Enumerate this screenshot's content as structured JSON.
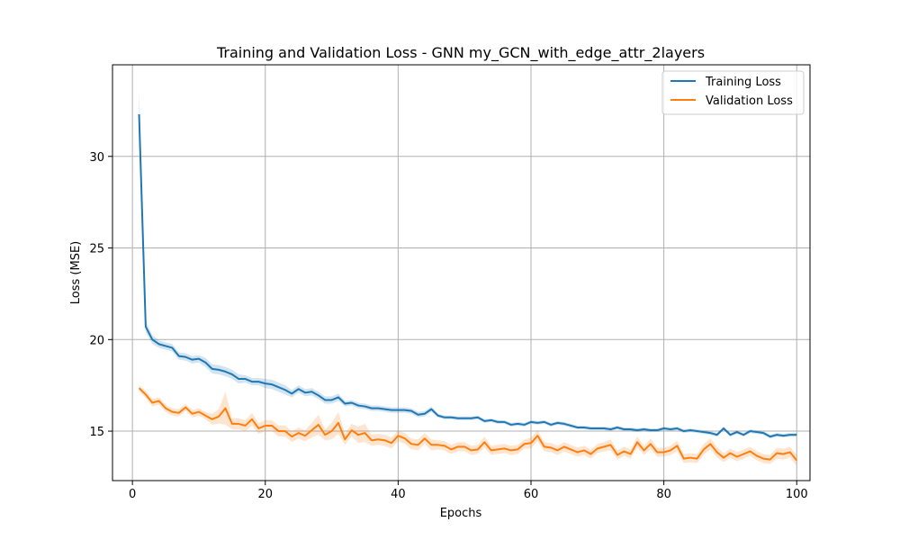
{
  "chart_data": {
    "type": "line",
    "title": "Training and Validation Loss - GNN my_GCN_with_edge_attr_2layers",
    "xlabel": "Epochs",
    "ylabel": "Loss (MSE)",
    "xlim": [
      -3,
      102
    ],
    "ylim": [
      12.3,
      35.0
    ],
    "xticks": [
      0,
      20,
      40,
      60,
      80,
      100
    ],
    "yticks": [
      15,
      20,
      25,
      30
    ],
    "grid": true,
    "legend_position": "top-right",
    "x": [
      1,
      2,
      3,
      4,
      5,
      6,
      7,
      8,
      9,
      10,
      11,
      12,
      13,
      14,
      15,
      16,
      17,
      18,
      19,
      20,
      21,
      22,
      23,
      24,
      25,
      26,
      27,
      28,
      29,
      30,
      31,
      32,
      33,
      34,
      35,
      36,
      37,
      38,
      39,
      40,
      41,
      42,
      43,
      44,
      45,
      46,
      47,
      48,
      49,
      50,
      51,
      52,
      53,
      54,
      55,
      56,
      57,
      58,
      59,
      60,
      61,
      62,
      63,
      64,
      65,
      66,
      67,
      68,
      69,
      70,
      71,
      72,
      73,
      74,
      75,
      76,
      77,
      78,
      79,
      80,
      81,
      82,
      83,
      84,
      85,
      86,
      87,
      88,
      89,
      90,
      91,
      92,
      93,
      94,
      95,
      96,
      97,
      98,
      99,
      100
    ],
    "series": [
      {
        "name": "Training Loss",
        "color": "#1f77b4",
        "values": [
          32.3,
          20.7,
          20.0,
          19.75,
          19.65,
          19.55,
          19.1,
          19.05,
          18.9,
          18.95,
          18.75,
          18.4,
          18.35,
          18.25,
          18.1,
          17.85,
          17.85,
          17.7,
          17.7,
          17.6,
          17.55,
          17.4,
          17.25,
          17.05,
          17.3,
          17.1,
          17.15,
          16.95,
          16.7,
          16.7,
          16.85,
          16.5,
          16.55,
          16.4,
          16.35,
          16.25,
          16.25,
          16.2,
          16.15,
          16.15,
          16.15,
          16.1,
          15.9,
          15.95,
          16.2,
          15.85,
          15.75,
          15.75,
          15.7,
          15.7,
          15.7,
          15.75,
          15.55,
          15.6,
          15.5,
          15.5,
          15.35,
          15.4,
          15.35,
          15.5,
          15.45,
          15.5,
          15.35,
          15.45,
          15.4,
          15.3,
          15.2,
          15.2,
          15.15,
          15.15,
          15.15,
          15.1,
          15.2,
          15.1,
          15.1,
          15.05,
          15.1,
          15.05,
          15.05,
          15.15,
          15.1,
          15.15,
          15.0,
          15.05,
          15.0,
          14.95,
          14.9,
          14.8,
          15.15,
          14.8,
          14.95,
          14.8,
          15.0,
          14.95,
          14.9,
          14.7,
          14.8,
          14.75,
          14.8,
          14.8
        ],
        "band": [
          1.3,
          0.3,
          0.25,
          0.2,
          0.2,
          0.2,
          0.2,
          0.2,
          0.2,
          0.2,
          0.25,
          0.25,
          0.25,
          0.25,
          0.25,
          0.25,
          0.2,
          0.2,
          0.2,
          0.25,
          0.25,
          0.25,
          0.25,
          0.2,
          0.2,
          0.2,
          0.2,
          0.2,
          0.2,
          0.2,
          0.2,
          0.15,
          0.15,
          0.15,
          0.15,
          0.15,
          0.15,
          0.15,
          0.15,
          0.15,
          0.15,
          0.15,
          0.15,
          0.15,
          0.15,
          0.1,
          0.1,
          0.1,
          0.1,
          0.1,
          0.1,
          0.1,
          0.1,
          0.1,
          0.1,
          0.1,
          0.1,
          0.1,
          0.1,
          0.1,
          0.1,
          0.1,
          0.1,
          0.1,
          0.1,
          0.1,
          0.1,
          0.1,
          0.1,
          0.1,
          0.1,
          0.1,
          0.1,
          0.1,
          0.1,
          0.1,
          0.1,
          0.1,
          0.1,
          0.1,
          0.1,
          0.1,
          0.1,
          0.1,
          0.1,
          0.1,
          0.1,
          0.1,
          0.1,
          0.1,
          0.1,
          0.1,
          0.1,
          0.1,
          0.1,
          0.1,
          0.1,
          0.1,
          0.1,
          0.1
        ]
      },
      {
        "name": "Validation Loss",
        "color": "#ff7f0e",
        "values": [
          17.35,
          17.0,
          16.55,
          16.65,
          16.25,
          16.05,
          16.0,
          16.3,
          15.95,
          16.05,
          15.85,
          15.65,
          15.8,
          16.25,
          15.4,
          15.4,
          15.3,
          15.65,
          15.15,
          15.3,
          15.3,
          15.0,
          15.0,
          14.7,
          14.9,
          14.75,
          15.05,
          15.35,
          14.8,
          15.0,
          15.45,
          14.55,
          15.05,
          14.8,
          14.9,
          14.5,
          14.55,
          14.5,
          14.35,
          14.75,
          14.6,
          14.3,
          14.25,
          14.6,
          14.25,
          14.25,
          14.2,
          14.0,
          14.15,
          14.15,
          13.95,
          14.0,
          14.4,
          13.95,
          14.0,
          14.05,
          13.95,
          14.0,
          14.3,
          14.35,
          14.75,
          14.15,
          14.1,
          13.95,
          14.15,
          14.0,
          13.85,
          13.95,
          13.75,
          14.05,
          14.15,
          14.25,
          13.7,
          13.9,
          13.75,
          14.4,
          13.95,
          14.3,
          13.85,
          13.85,
          13.95,
          14.2,
          13.5,
          13.55,
          13.5,
          14.0,
          14.3,
          13.85,
          13.55,
          13.8,
          13.6,
          13.75,
          13.9,
          13.65,
          13.5,
          13.45,
          13.8,
          13.75,
          13.85,
          13.4
        ],
        "band": [
          0.15,
          0.2,
          0.2,
          0.2,
          0.2,
          0.2,
          0.2,
          0.2,
          0.2,
          0.2,
          0.2,
          0.3,
          0.4,
          0.9,
          0.3,
          0.3,
          0.3,
          0.35,
          0.3,
          0.3,
          0.3,
          0.3,
          0.3,
          0.3,
          0.3,
          0.3,
          0.4,
          0.55,
          0.3,
          0.45,
          0.6,
          0.3,
          0.35,
          0.45,
          0.5,
          0.3,
          0.3,
          0.3,
          0.3,
          0.3,
          0.3,
          0.3,
          0.3,
          0.3,
          0.3,
          0.25,
          0.25,
          0.25,
          0.25,
          0.25,
          0.25,
          0.25,
          0.3,
          0.25,
          0.25,
          0.25,
          0.25,
          0.25,
          0.25,
          0.3,
          0.3,
          0.25,
          0.25,
          0.25,
          0.25,
          0.25,
          0.25,
          0.25,
          0.25,
          0.25,
          0.25,
          0.3,
          0.25,
          0.25,
          0.25,
          0.3,
          0.25,
          0.3,
          0.25,
          0.25,
          0.25,
          0.3,
          0.25,
          0.25,
          0.25,
          0.3,
          0.3,
          0.3,
          0.25,
          0.25,
          0.25,
          0.25,
          0.25,
          0.25,
          0.25,
          0.25,
          0.3,
          0.3,
          0.3,
          0.3
        ]
      }
    ]
  }
}
